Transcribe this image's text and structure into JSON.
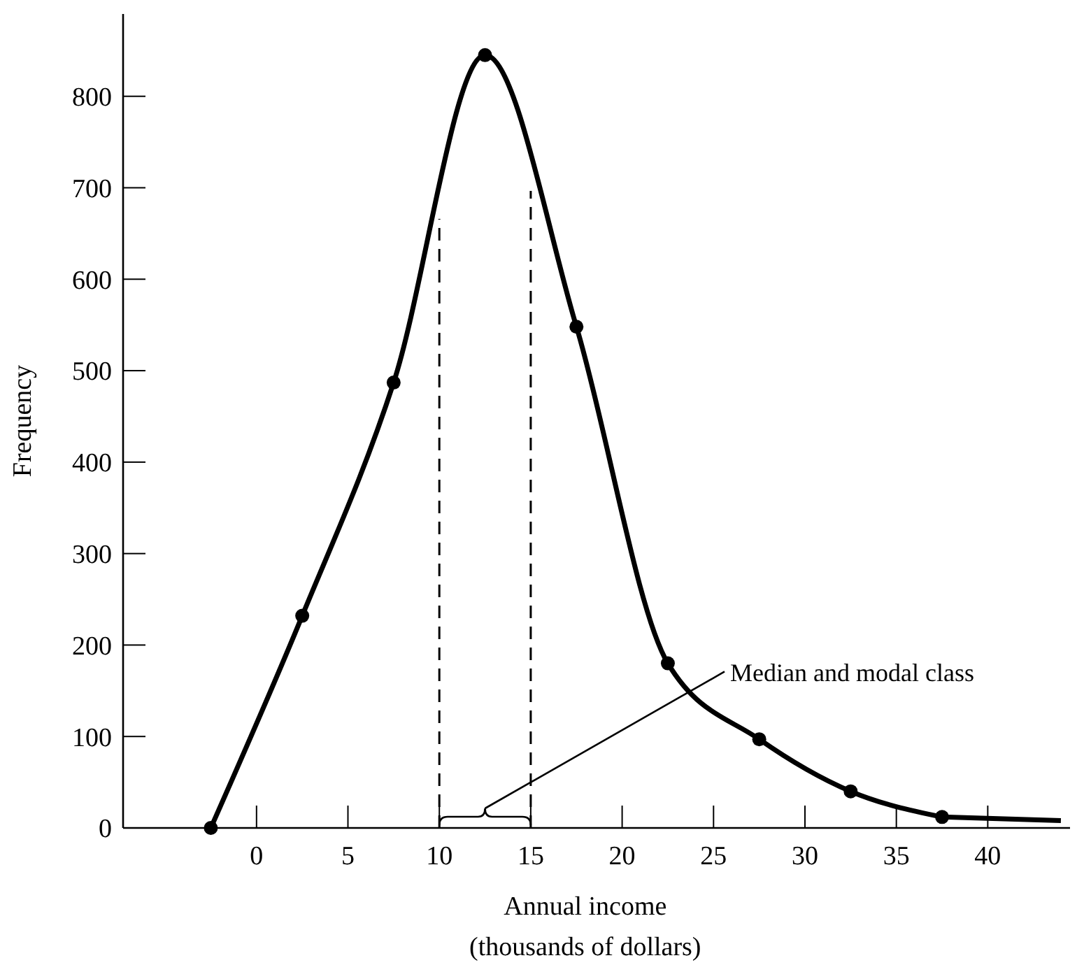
{
  "chart_data": {
    "type": "line",
    "xlabel": "Annual income\n(thousands of dollars)",
    "ylabel": "Frequency",
    "xlim": [
      -7.3,
      44.5
    ],
    "xticks": [
      0,
      5,
      10,
      15,
      20,
      25,
      30,
      35,
      40
    ],
    "ylim": [
      0,
      890
    ],
    "yticks": [
      0,
      100,
      200,
      300,
      400,
      500,
      600,
      700,
      800
    ],
    "grid": false,
    "series": [
      {
        "color": "#000000",
        "marker": "circle",
        "x": [
          -2.5,
          2.5,
          7.5,
          12.5,
          17.5,
          22.5,
          27.5,
          32.5,
          37.5
        ],
        "values": [
          0,
          232,
          487,
          845,
          548,
          180,
          97,
          40,
          12
        ]
      },
      {
        "color": "#000000",
        "marker": "none",
        "x": [
          37.5,
          44
        ],
        "values": [
          12,
          8
        ]
      }
    ],
    "ref_lines": [
      {
        "axis": "x",
        "value": 10,
        "line_style": "dashed",
        "color": "#000000"
      },
      {
        "axis": "x",
        "value": 15,
        "line_style": "dashed",
        "color": "#000000"
      }
    ],
    "annotations": [
      "Median and modal class"
    ]
  }
}
